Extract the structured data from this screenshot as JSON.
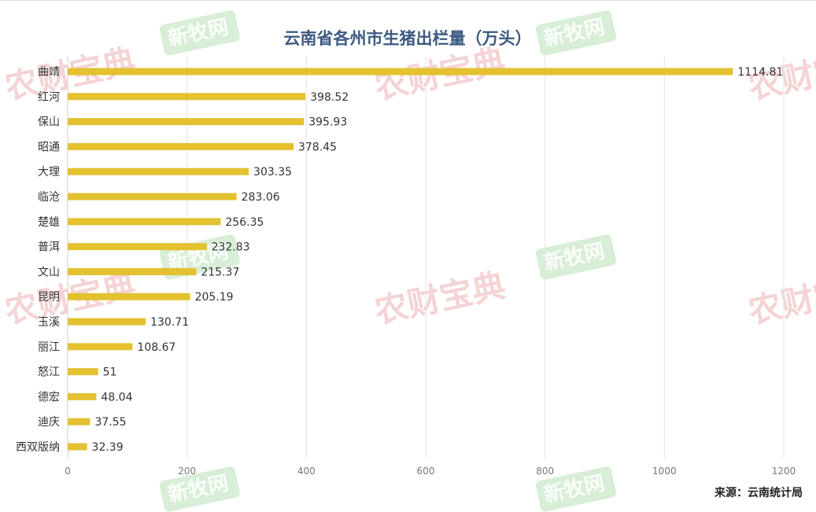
{
  "chart_data": {
    "type": "bar",
    "orientation": "horizontal",
    "title": "云南省各州市生猪出栏量（万头）",
    "categories": [
      "曲靖",
      "红河",
      "保山",
      "昭通",
      "大理",
      "临沧",
      "楚雄",
      "普洱",
      "文山",
      "昆明",
      "玉溪",
      "丽江",
      "怒江",
      "德宏",
      "迪庆",
      "西双版纳"
    ],
    "values": [
      1114.81,
      398.52,
      395.93,
      378.45,
      303.35,
      283.06,
      256.35,
      232.83,
      215.37,
      205.19,
      130.71,
      108.67,
      51,
      48.04,
      37.55,
      32.39
    ],
    "value_labels": [
      "1114.81",
      "398.52",
      "395.93",
      "378.45",
      "303.35",
      "283.06",
      "256.35",
      "232.83",
      "215.37",
      "205.19",
      "130.71",
      "108.67",
      "51",
      "48.04",
      "37.55",
      "32.39"
    ],
    "x_ticks": [
      "0",
      "200",
      "400",
      "600",
      "800",
      "1000",
      "1200"
    ],
    "xlim": [
      0,
      1200
    ],
    "grid": "vertical",
    "legend": "none",
    "bar_color": "#e3c12f"
  },
  "source": "来源：云南统计局",
  "watermarks": {
    "red_text": "农财宝典",
    "green_text": "新牧网"
  },
  "colors": {
    "title": "#3d5a80",
    "bar": "#e3c12f",
    "grid": "#e4e4e4",
    "watermark_red": "#e8a2a2",
    "watermark_green": "#8fcf8c"
  }
}
